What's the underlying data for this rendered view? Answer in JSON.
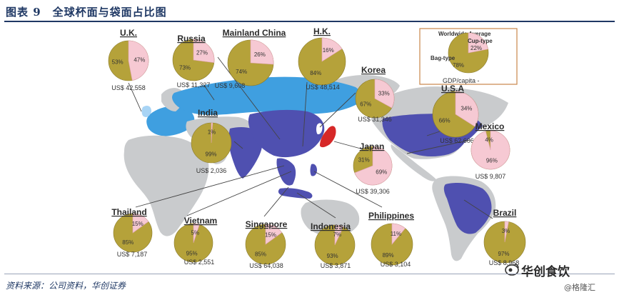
{
  "figure": {
    "title": "图表 9　全球杯面与袋面占比图",
    "source": "资料来源：公司资料，华创证券",
    "watermark": "华创食饮",
    "watermark_sub": "@格隆汇"
  },
  "legend": {
    "title": "Worldwide Average",
    "cup_label": "Cup-type",
    "bag_label": "Bag-type",
    "cup_pct": "22%",
    "bag_pct": "78%",
    "gdp_label": "GDP/capita  -"
  },
  "colors": {
    "bag": "#b5a23a",
    "cup": "#f6c9d3",
    "ocean": "#ffffff",
    "land_base": "#c9cbcd",
    "highlight_blue": "#3f9fe0",
    "highlight_purple": "#4f50b0",
    "title_blue": "#1f3864"
  },
  "chart_data": {
    "type": "pie",
    "title": "全球杯面与袋面占比图",
    "series_names": [
      "Bag-type",
      "Cup-type"
    ],
    "worldwide_average": {
      "bag": 78,
      "cup": 22
    },
    "countries": [
      {
        "name": "U.K.",
        "bag": 53,
        "cup": 47,
        "gdp": "US$ 42,558"
      },
      {
        "name": "Russia",
        "bag": 73,
        "cup": 27,
        "gdp": "US$ 11,327"
      },
      {
        "name": "Mainland China",
        "bag": 74,
        "cup": 26,
        "gdp": "US$ 9,608"
      },
      {
        "name": "H.K.",
        "bag": 84,
        "cup": 16,
        "gdp": "US$ 48,514"
      },
      {
        "name": "Korea",
        "bag": 67,
        "cup": 33,
        "gdp": "US$ 31,346"
      },
      {
        "name": "U.S.A",
        "bag": 66,
        "cup": 34,
        "gdp": "US$ 62,606"
      },
      {
        "name": "Mexico",
        "bag": 4,
        "cup": 96,
        "gdp": "US$ 9,807"
      },
      {
        "name": "India",
        "bag": 99,
        "cup": 1,
        "gdp": "US$ 2,036"
      },
      {
        "name": "Japan",
        "bag": 31,
        "cup": 69,
        "gdp": "US$ 39,306"
      },
      {
        "name": "Thailand",
        "bag": 85,
        "cup": 15,
        "gdp": "US$ 7,187"
      },
      {
        "name": "Vietnam",
        "bag": 95,
        "cup": 5,
        "gdp": "US$ 2,551"
      },
      {
        "name": "Singapore",
        "bag": 85,
        "cup": 15,
        "gdp": "US$ 64,038"
      },
      {
        "name": "Indonesia",
        "bag": 93,
        "cup": 7,
        "gdp": "US$ 3,871"
      },
      {
        "name": "Philippines",
        "bag": 89,
        "cup": 11,
        "gdp": "US$ 3,104"
      },
      {
        "name": "Brazil",
        "bag": 97,
        "cup": 3,
        "gdp": "US$ 8,968"
      }
    ]
  }
}
